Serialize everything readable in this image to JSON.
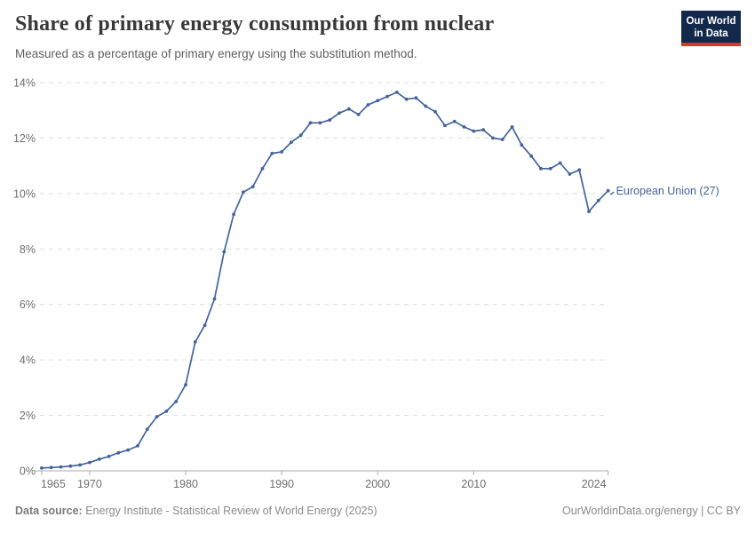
{
  "header": {
    "title": "Share of primary energy consumption from nuclear",
    "subtitle": "Measured as a percentage of primary energy using the substitution method.",
    "logo": {
      "line1": "Our World",
      "line2": "in Data",
      "bg_color": "#13294b",
      "bar_color": "#dc3328"
    }
  },
  "chart_data": {
    "type": "line",
    "title": "Share of primary energy consumption from nuclear",
    "xlabel": "",
    "ylabel": "",
    "xlim": [
      1965,
      2024
    ],
    "ylim": [
      0,
      14
    ],
    "grid": "horizontal-dashed",
    "legend_position": "end-of-line-label",
    "x_ticks": [
      1965,
      1970,
      1980,
      1990,
      2000,
      2010,
      2024
    ],
    "y_ticks": [
      0,
      2,
      4,
      6,
      8,
      10,
      12,
      14
    ],
    "y_tick_suffix": "%",
    "colors": {
      "series": "#44639c",
      "gridline": "#dcdcdc",
      "axis_line": "#aaaaaa",
      "tick_label": "#6e6e6e"
    },
    "series": [
      {
        "name": "European Union (27)",
        "color": "#44639c",
        "x": [
          1965,
          1966,
          1967,
          1968,
          1969,
          1970,
          1971,
          1972,
          1973,
          1974,
          1975,
          1976,
          1977,
          1978,
          1979,
          1980,
          1981,
          1982,
          1983,
          1984,
          1985,
          1986,
          1987,
          1988,
          1989,
          1990,
          1991,
          1992,
          1993,
          1994,
          1995,
          1996,
          1997,
          1998,
          1999,
          2000,
          2001,
          2002,
          2003,
          2004,
          2005,
          2006,
          2007,
          2008,
          2009,
          2010,
          2011,
          2012,
          2013,
          2014,
          2015,
          2016,
          2017,
          2018,
          2019,
          2020,
          2021,
          2022,
          2023,
          2024
        ],
        "values": [
          0.1,
          0.12,
          0.14,
          0.17,
          0.21,
          0.3,
          0.42,
          0.52,
          0.65,
          0.75,
          0.9,
          1.5,
          1.95,
          2.15,
          2.5,
          3.1,
          4.65,
          5.25,
          6.2,
          7.9,
          9.25,
          10.05,
          10.25,
          10.9,
          11.45,
          11.5,
          11.85,
          12.1,
          12.55,
          12.55,
          12.65,
          12.9,
          13.05,
          12.85,
          13.2,
          13.35,
          13.5,
          13.65,
          13.4,
          13.45,
          13.15,
          12.95,
          12.45,
          12.6,
          12.4,
          12.25,
          12.3,
          12.0,
          11.95,
          12.4,
          11.75,
          11.35,
          10.9,
          10.9,
          11.1,
          10.7,
          10.85,
          9.35,
          9.75,
          10.1
        ]
      }
    ]
  },
  "footer": {
    "source_label": "Data source:",
    "source_text": " Energy Institute - Statistical Review of World Energy (2025)",
    "credit": "OurWorldinData.org/energy | CC BY"
  }
}
